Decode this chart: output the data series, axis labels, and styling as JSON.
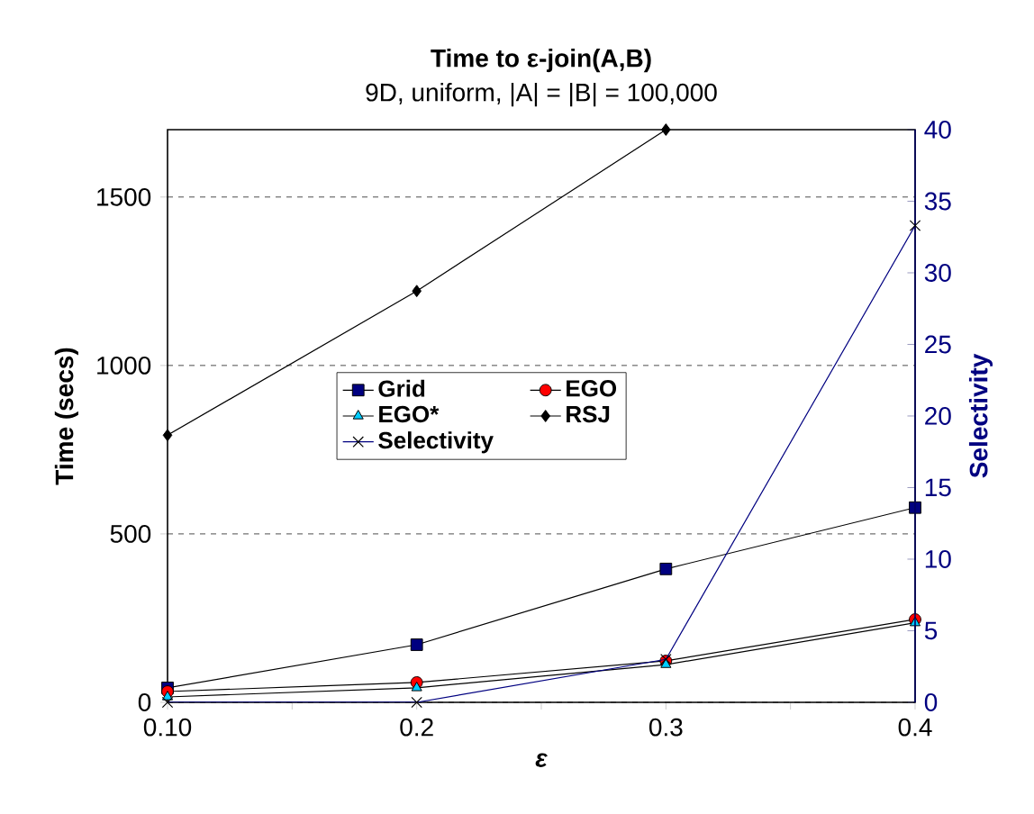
{
  "chart_data": {
    "type": "line",
    "title": "Time to ε-join(A,B)",
    "subtitle": "9D, uniform, |A| = |B| = 100,000",
    "xlabel": "ε",
    "ylabel": "Time (secs)",
    "y2label": "Selectivity",
    "x": [
      0.1,
      0.2,
      0.3,
      0.4
    ],
    "xlim": [
      0.1,
      0.4
    ],
    "xticks": [
      {
        "value": 0.1,
        "label": "0.10"
      },
      {
        "value": 0.15,
        "label": null
      },
      0.2,
      {
        "value": 0.25,
        "label": null
      },
      0.3,
      {
        "value": 0.35,
        "label": null
      },
      0.4
    ],
    "ylim": [
      0,
      1700
    ],
    "yticks": [
      0,
      500,
      1000,
      1500
    ],
    "y2lim": [
      0,
      40
    ],
    "y2ticks": [
      0,
      5,
      10,
      15,
      20,
      25,
      30,
      35,
      40
    ],
    "grid": "y",
    "legend": "center",
    "line_style": "solid",
    "series": [
      {
        "name": "Grid",
        "color": "#000080",
        "marker": "square",
        "values": [
          43,
          171,
          396,
          578
        ]
      },
      {
        "name": "EGO",
        "color": "#ff0000",
        "marker": "circle",
        "values": [
          32,
          59,
          123,
          246
        ]
      },
      {
        "name": "EGO*",
        "color": "#00ccff",
        "marker": "triangle",
        "values": [
          16,
          43,
          112,
          236
        ]
      },
      {
        "name": "RSJ",
        "color": "#000000",
        "marker": "diamond",
        "values": [
          793,
          1221,
          1700,
          null
        ]
      },
      {
        "name": "Selectivity",
        "color": "#000080",
        "marker": "cross",
        "axis": "y2",
        "values": [
          0,
          0,
          3.0,
          33.3
        ]
      }
    ]
  }
}
